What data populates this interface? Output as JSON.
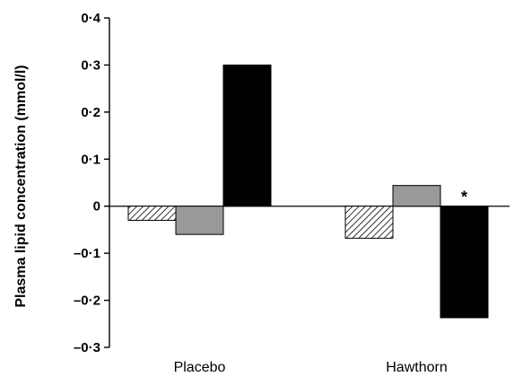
{
  "chart_data": {
    "type": "bar",
    "categories": [
      "Placebo",
      "Hawthorn"
    ],
    "series": [
      {
        "fill": "hatched",
        "values": [
          -0.03,
          -0.068
        ]
      },
      {
        "fill": "grey",
        "color": "#999999",
        "values": [
          -0.06,
          0.044
        ]
      },
      {
        "fill": "black",
        "color": "#000000",
        "values": [
          0.3,
          -0.237
        ]
      }
    ],
    "ylabel": "Plasma lipid concentration (mmol/l)",
    "xlabel": "",
    "ylim": [
      -0.3,
      0.4
    ],
    "yticks": [
      0.4,
      0.3,
      0.2,
      0.1,
      0,
      -0.1,
      -0.2,
      -0.3
    ],
    "ytick_labels": [
      "0·4",
      "0·3",
      "0·2",
      "0·1",
      "0",
      "–0·1",
      "–0·2",
      "–0·3"
    ],
    "grid": false,
    "annotations": [
      {
        "text": "*",
        "category": "Hawthorn",
        "series_index": 2
      }
    ]
  }
}
